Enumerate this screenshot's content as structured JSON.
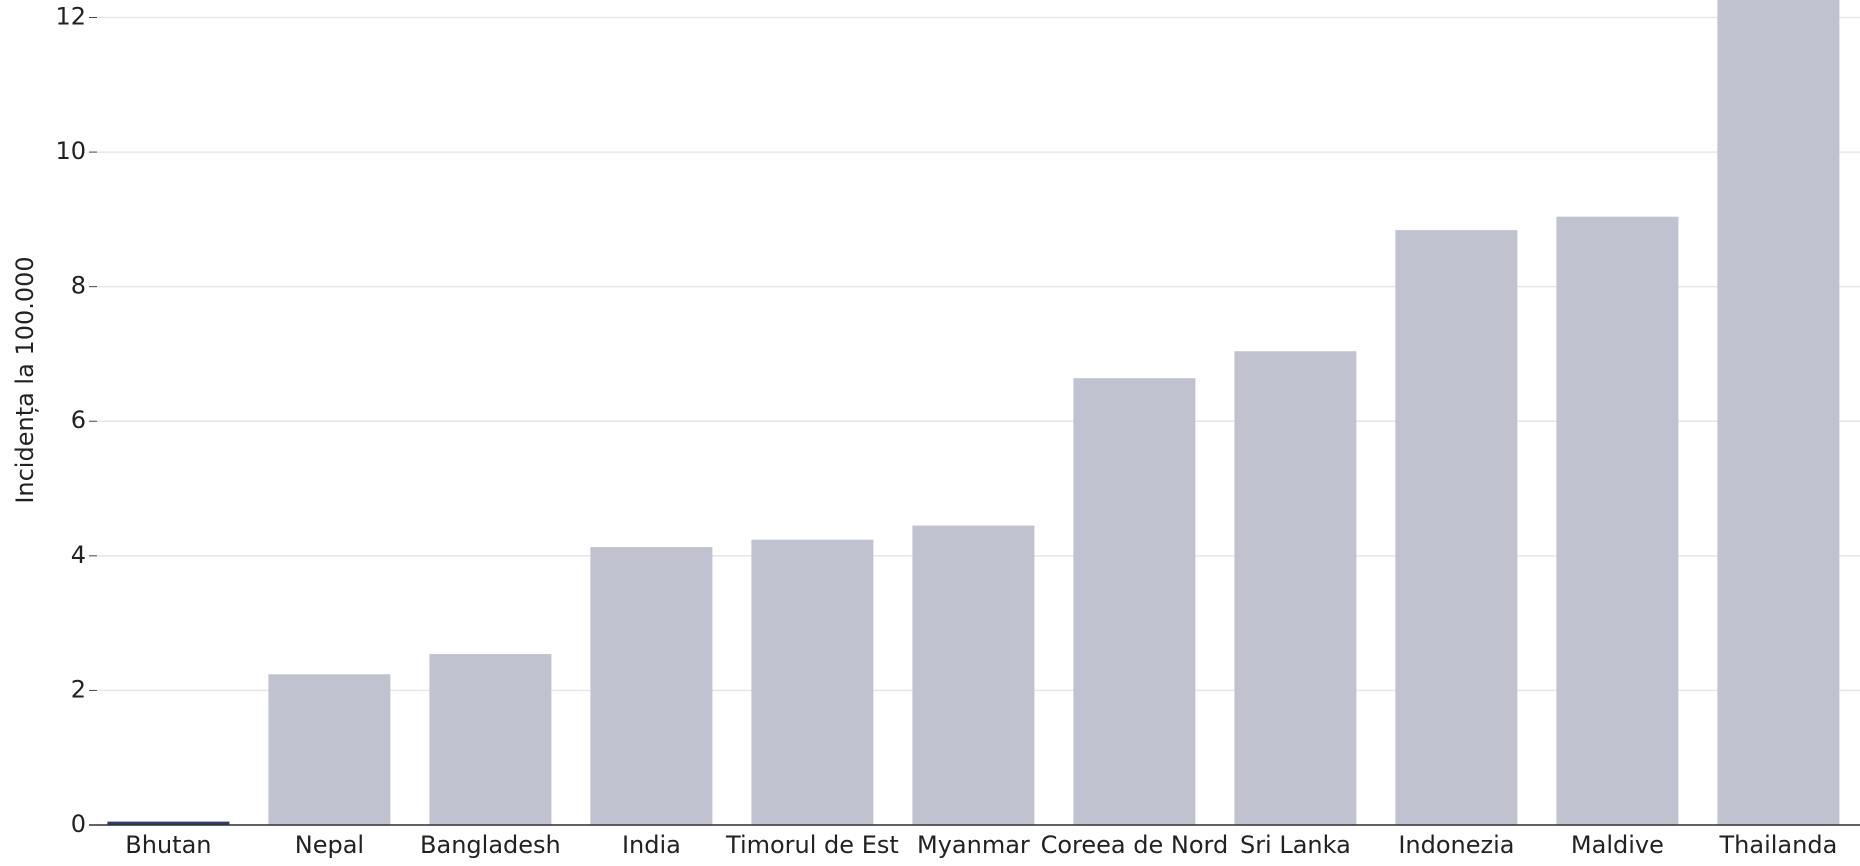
{
  "chart_data": {
    "type": "bar",
    "y_label": "Incidența la 100.000",
    "categories": [
      "Bhutan",
      "Nepal",
      "Bangladesh",
      "India",
      "Timorul de Est",
      "Myanmar",
      "Coreea de Nord",
      "Sri Lanka",
      "Indonezia",
      "Maldive",
      "Thailanda"
    ],
    "values": [
      0.05,
      2.24,
      2.54,
      4.13,
      4.24,
      4.45,
      6.64,
      7.04,
      8.84,
      9.04,
      12.5
    ],
    "colors": [
      "#2d3a6e",
      "#c0c3cf",
      "#c0c3cf",
      "#c0c3cf",
      "#c0c3cf",
      "#c0c3cf",
      "#c0c3cf",
      "#c0c3cf",
      "#c0c3cf",
      "#c0c3cf",
      "#c0c3cf"
    ],
    "ylim": [
      0,
      12.26
    ],
    "yticks": [
      0,
      2,
      4,
      6,
      8,
      10,
      12
    ],
    "grid": true
  }
}
